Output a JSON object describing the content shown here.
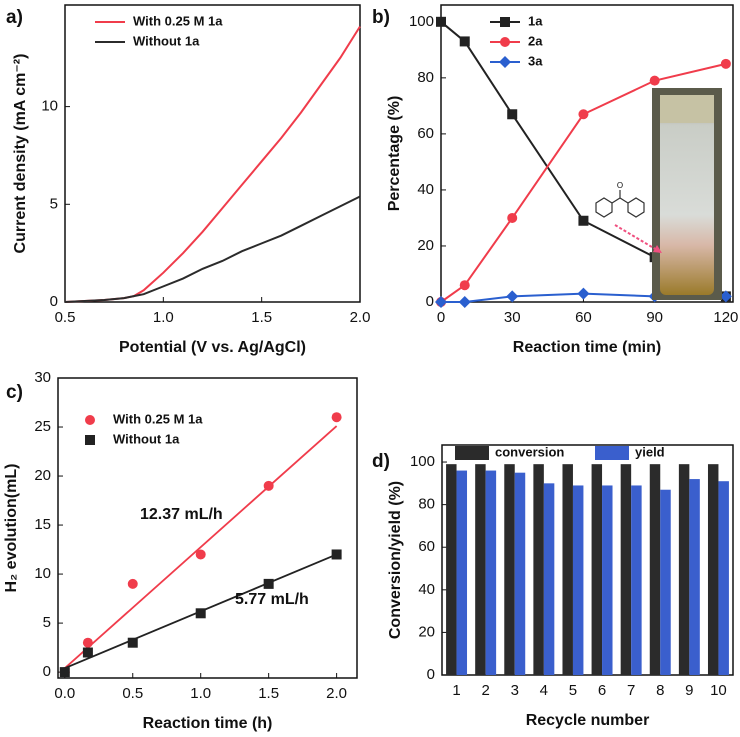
{
  "chart_data": [
    {
      "type": "line",
      "panel_label": "a)",
      "xlabel": "Potential (V vs. Ag/AgCl)",
      "ylabel": "Current density (mA cm⁻²)",
      "xlim": [
        0.5,
        2.0
      ],
      "xticks": [
        0.5,
        {
          "value": 1,
          "label": "1.0"
        },
        1.5,
        {
          "value": 2,
          "label": "2.0"
        }
      ],
      "ylim": [
        0,
        15.2
      ],
      "yticks": [
        0,
        5,
        10
      ],
      "x": [
        0.5,
        0.6,
        0.7,
        0.8,
        0.85,
        0.9,
        1.0,
        1.1,
        1.2,
        1.3,
        1.4,
        1.5,
        1.6,
        1.7,
        1.8,
        1.9,
        2.0
      ],
      "series": [
        {
          "name": "With 0.25 M 1a",
          "color": "#f03c4b",
          "values": [
            0,
            0.05,
            0.1,
            0.2,
            0.3,
            0.6,
            1.5,
            2.5,
            3.6,
            4.8,
            6.0,
            7.2,
            8.4,
            9.7,
            11.1,
            12.5,
            14.1
          ]
        },
        {
          "name": "Without 1a",
          "color": "#2b2b2b",
          "values": [
            0,
            0.05,
            0.1,
            0.2,
            0.3,
            0.4,
            0.8,
            1.2,
            1.7,
            2.1,
            2.6,
            3.0,
            3.4,
            3.9,
            4.4,
            4.9,
            5.4
          ]
        }
      ]
    },
    {
      "type": "line",
      "panel_label": "b)",
      "xlabel": "Reaction time (min)",
      "ylabel": "Percentage (%)",
      "xlim": [
        0,
        123
      ],
      "xticks": [
        0,
        30,
        60,
        90,
        120
      ],
      "ylim": [
        0,
        106
      ],
      "yticks": [
        0,
        20,
        40,
        60,
        80,
        100
      ],
      "x": [
        0,
        10,
        30,
        60,
        90,
        120
      ],
      "series": [
        {
          "name": "1a",
          "color": "#222222",
          "marker": "square",
          "values": [
            100,
            93,
            67,
            29,
            16,
            2
          ]
        },
        {
          "name": "2a",
          "color": "#f03c4b",
          "marker": "circle",
          "values": [
            0,
            6,
            30,
            67,
            79,
            85
          ]
        },
        {
          "name": "3a",
          "color": "#2a5fcf",
          "marker": "diamond",
          "values": [
            0,
            0,
            2,
            3,
            2,
            2
          ]
        }
      ]
    },
    {
      "type": "scatter",
      "panel_label": "c)",
      "xlabel": "Reaction time (h)",
      "ylabel": "H₂ evolution(mL)",
      "xlim": [
        -0.05,
        2.15
      ],
      "xticks": [
        {
          "value": 0,
          "label": "0.0"
        },
        0.5,
        {
          "value": 1,
          "label": "1.0"
        },
        1.5,
        {
          "value": 2,
          "label": "2.0"
        }
      ],
      "ylim": [
        -0.6,
        30
      ],
      "yticks": [
        0,
        5,
        10,
        15,
        20,
        25,
        30
      ],
      "x": [
        0,
        0.17,
        0.5,
        1,
        1.5,
        2
      ],
      "fit_x": [
        0,
        2
      ],
      "series": [
        {
          "name": "With 0.25 M 1a",
          "color": "#f03c4b",
          "marker": "circle",
          "values": [
            0,
            3,
            9,
            12,
            19,
            26
          ],
          "fit": [
            0.4,
            25.1
          ]
        },
        {
          "name": "Without 1a",
          "color": "#222222",
          "marker": "square",
          "values": [
            0,
            2,
            3,
            6,
            9,
            12
          ],
          "fit": [
            0.4,
            12.0
          ]
        }
      ],
      "annotations": [
        {
          "text": "12.37 mL/h",
          "color": "#f03c4b"
        },
        {
          "text": "5.77 mL/h",
          "color": "#222222"
        }
      ]
    },
    {
      "type": "bar",
      "panel_label": "d)",
      "xlabel": "Recycle number",
      "ylabel": "Conversion/yield (%)",
      "ylim": [
        0,
        108
      ],
      "yticks": [
        0,
        20,
        40,
        60,
        80,
        100
      ],
      "categories": [
        "1",
        "2",
        "3",
        "4",
        "5",
        "6",
        "7",
        "8",
        "9",
        "10"
      ],
      "series": [
        {
          "name": "conversion",
          "color": "#2b2b2b",
          "values": [
            99,
            99,
            99,
            99,
            99,
            99,
            99,
            99,
            99,
            99
          ]
        },
        {
          "name": "yield",
          "color": "#3a5fcd",
          "values": [
            96,
            96,
            95,
            90,
            89,
            89,
            89,
            87,
            92,
            91
          ]
        }
      ]
    }
  ]
}
